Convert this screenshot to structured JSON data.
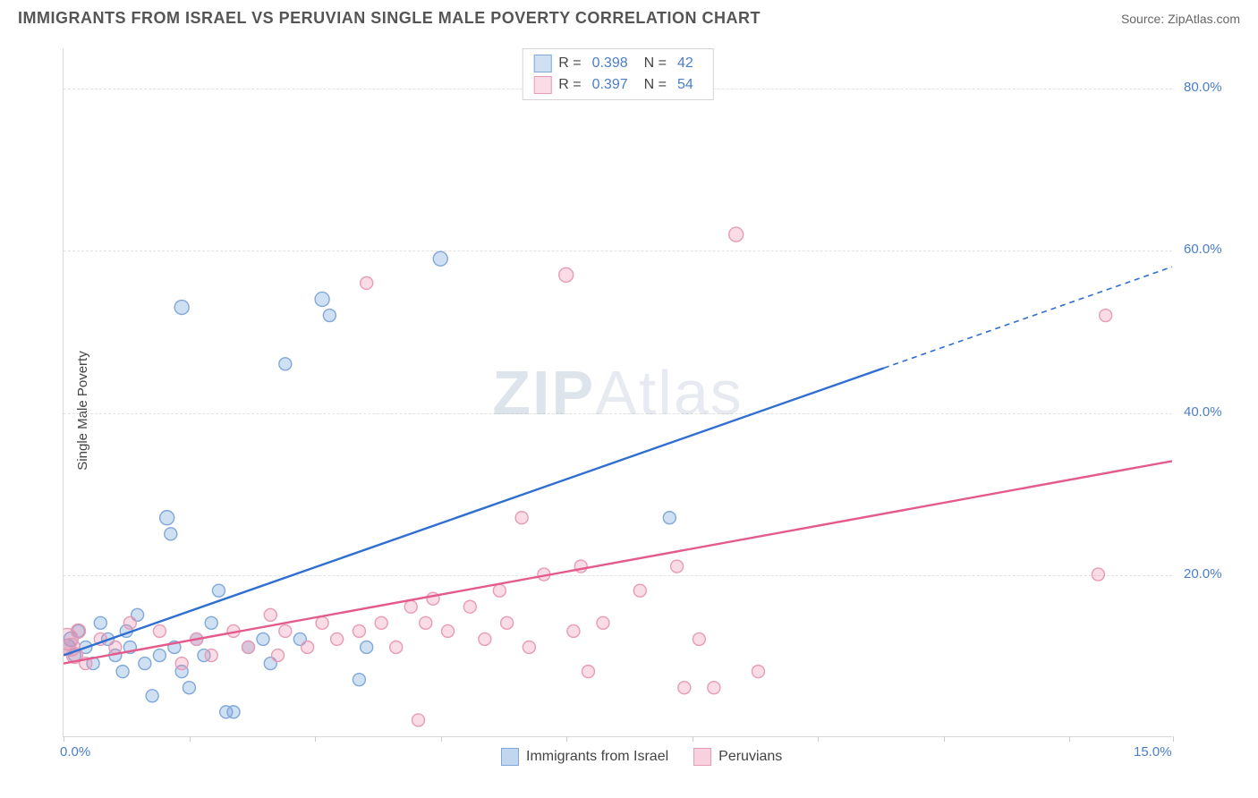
{
  "header": {
    "title": "IMMIGRANTS FROM ISRAEL VS PERUVIAN SINGLE MALE POVERTY CORRELATION CHART",
    "source_prefix": "Source: ",
    "source_name": "ZipAtlas.com"
  },
  "ylabel": "Single Male Poverty",
  "watermark": {
    "zip": "ZIP",
    "rest": "Atlas"
  },
  "chart": {
    "type": "scatter",
    "xlim": [
      0,
      15
    ],
    "ylim": [
      0,
      85
    ],
    "x_ticks": [
      0,
      1.7,
      3.4,
      5.1,
      6.8,
      8.5,
      10.2,
      11.9,
      13.6,
      15
    ],
    "y_grid": [
      20,
      40,
      60,
      80
    ],
    "x_axis_labels": [
      {
        "v": 0,
        "t": "0.0%"
      },
      {
        "v": 15,
        "t": "15.0%"
      }
    ],
    "y_axis_labels": [
      {
        "v": 20,
        "t": "20.0%"
      },
      {
        "v": 40,
        "t": "40.0%"
      },
      {
        "v": 60,
        "t": "60.0%"
      },
      {
        "v": 80,
        "t": "80.0%"
      }
    ],
    "background_color": "#ffffff",
    "grid_color": "#e2e2e2",
    "series": [
      {
        "name": "Immigrants from Israel",
        "color_fill": "rgba(120,165,220,0.35)",
        "color_stroke": "#7fa8d9",
        "line_color": "#2e6fd1",
        "r_label": "R =",
        "r_value": "0.398",
        "n_label": "N =",
        "n_value": "42",
        "trend": {
          "x1": 0.0,
          "y1": 10.0,
          "x2": 11.1,
          "y2": 45.5,
          "x2_dash": 15.0,
          "y2_dash": 58.0
        },
        "points": [
          {
            "x": 0.05,
            "y": 11,
            "r": 9
          },
          {
            "x": 0.1,
            "y": 12,
            "r": 8
          },
          {
            "x": 0.15,
            "y": 10,
            "r": 7
          },
          {
            "x": 0.2,
            "y": 13,
            "r": 7
          },
          {
            "x": 0.3,
            "y": 11,
            "r": 7
          },
          {
            "x": 0.4,
            "y": 9,
            "r": 7
          },
          {
            "x": 0.5,
            "y": 14,
            "r": 7
          },
          {
            "x": 0.6,
            "y": 12,
            "r": 7
          },
          {
            "x": 0.7,
            "y": 10,
            "r": 7
          },
          {
            "x": 0.8,
            "y": 8,
            "r": 7
          },
          {
            "x": 0.85,
            "y": 13,
            "r": 7
          },
          {
            "x": 0.9,
            "y": 11,
            "r": 7
          },
          {
            "x": 1.0,
            "y": 15,
            "r": 7
          },
          {
            "x": 1.1,
            "y": 9,
            "r": 7
          },
          {
            "x": 1.2,
            "y": 5,
            "r": 7
          },
          {
            "x": 1.3,
            "y": 10,
            "r": 7
          },
          {
            "x": 1.4,
            "y": 27,
            "r": 8
          },
          {
            "x": 1.45,
            "y": 25,
            "r": 7
          },
          {
            "x": 1.5,
            "y": 11,
            "r": 7
          },
          {
            "x": 1.6,
            "y": 8,
            "r": 7
          },
          {
            "x": 1.7,
            "y": 6,
            "r": 7
          },
          {
            "x": 1.8,
            "y": 12,
            "r": 7
          },
          {
            "x": 1.9,
            "y": 10,
            "r": 7
          },
          {
            "x": 2.0,
            "y": 14,
            "r": 7
          },
          {
            "x": 2.1,
            "y": 18,
            "r": 7
          },
          {
            "x": 2.2,
            "y": 3,
            "r": 7
          },
          {
            "x": 2.3,
            "y": 3,
            "r": 7
          },
          {
            "x": 2.5,
            "y": 11,
            "r": 7
          },
          {
            "x": 2.7,
            "y": 12,
            "r": 7
          },
          {
            "x": 2.8,
            "y": 9,
            "r": 7
          },
          {
            "x": 3.2,
            "y": 12,
            "r": 7
          },
          {
            "x": 3.0,
            "y": 46,
            "r": 7
          },
          {
            "x": 3.5,
            "y": 54,
            "r": 8
          },
          {
            "x": 3.6,
            "y": 52,
            "r": 7
          },
          {
            "x": 1.6,
            "y": 53,
            "r": 8
          },
          {
            "x": 4.0,
            "y": 7,
            "r": 7
          },
          {
            "x": 4.1,
            "y": 11,
            "r": 7
          },
          {
            "x": 5.1,
            "y": 59,
            "r": 8
          },
          {
            "x": 8.2,
            "y": 27,
            "r": 7
          }
        ]
      },
      {
        "name": "Peruvians",
        "color_fill": "rgba(235,140,170,0.30)",
        "color_stroke": "#e89bb5",
        "line_color": "#e45a8c",
        "r_label": "R =",
        "r_value": "0.397",
        "n_label": "N =",
        "n_value": "54",
        "trend": {
          "x1": 0.0,
          "y1": 9.0,
          "x2": 15.0,
          "y2": 34.0
        },
        "points": [
          {
            "x": 0.05,
            "y": 12,
            "r": 12
          },
          {
            "x": 0.1,
            "y": 11,
            "r": 10
          },
          {
            "x": 0.15,
            "y": 10,
            "r": 9
          },
          {
            "x": 0.2,
            "y": 13,
            "r": 8
          },
          {
            "x": 0.3,
            "y": 9,
            "r": 7
          },
          {
            "x": 0.5,
            "y": 12,
            "r": 7
          },
          {
            "x": 0.7,
            "y": 11,
            "r": 7
          },
          {
            "x": 0.9,
            "y": 14,
            "r": 7
          },
          {
            "x": 1.3,
            "y": 13,
            "r": 7
          },
          {
            "x": 1.6,
            "y": 9,
            "r": 7
          },
          {
            "x": 1.8,
            "y": 12,
            "r": 7
          },
          {
            "x": 2.0,
            "y": 10,
            "r": 7
          },
          {
            "x": 2.3,
            "y": 13,
            "r": 7
          },
          {
            "x": 2.5,
            "y": 11,
            "r": 7
          },
          {
            "x": 2.8,
            "y": 15,
            "r": 7
          },
          {
            "x": 2.9,
            "y": 10,
            "r": 7
          },
          {
            "x": 3.0,
            "y": 13,
            "r": 7
          },
          {
            "x": 3.3,
            "y": 11,
            "r": 7
          },
          {
            "x": 3.5,
            "y": 14,
            "r": 7
          },
          {
            "x": 3.7,
            "y": 12,
            "r": 7
          },
          {
            "x": 4.0,
            "y": 13,
            "r": 7
          },
          {
            "x": 4.1,
            "y": 56,
            "r": 7
          },
          {
            "x": 4.3,
            "y": 14,
            "r": 7
          },
          {
            "x": 4.5,
            "y": 11,
            "r": 7
          },
          {
            "x": 4.7,
            "y": 16,
            "r": 7
          },
          {
            "x": 4.8,
            "y": 2,
            "r": 7
          },
          {
            "x": 4.9,
            "y": 14,
            "r": 7
          },
          {
            "x": 5.0,
            "y": 17,
            "r": 7
          },
          {
            "x": 5.2,
            "y": 13,
            "r": 7
          },
          {
            "x": 5.5,
            "y": 16,
            "r": 7
          },
          {
            "x": 5.7,
            "y": 12,
            "r": 7
          },
          {
            "x": 5.9,
            "y": 18,
            "r": 7
          },
          {
            "x": 6.0,
            "y": 14,
            "r": 7
          },
          {
            "x": 6.2,
            "y": 27,
            "r": 7
          },
          {
            "x": 6.3,
            "y": 11,
            "r": 7
          },
          {
            "x": 6.5,
            "y": 20,
            "r": 7
          },
          {
            "x": 6.8,
            "y": 57,
            "r": 8
          },
          {
            "x": 6.9,
            "y": 13,
            "r": 7
          },
          {
            "x": 7.0,
            "y": 21,
            "r": 7
          },
          {
            "x": 7.1,
            "y": 8,
            "r": 7
          },
          {
            "x": 7.3,
            "y": 14,
            "r": 7
          },
          {
            "x": 7.8,
            "y": 18,
            "r": 7
          },
          {
            "x": 8.3,
            "y": 21,
            "r": 7
          },
          {
            "x": 8.4,
            "y": 6,
            "r": 7
          },
          {
            "x": 8.6,
            "y": 12,
            "r": 7
          },
          {
            "x": 8.8,
            "y": 6,
            "r": 7
          },
          {
            "x": 9.1,
            "y": 62,
            "r": 8
          },
          {
            "x": 9.4,
            "y": 8,
            "r": 7
          },
          {
            "x": 14.1,
            "y": 52,
            "r": 7
          },
          {
            "x": 14.0,
            "y": 20,
            "r": 7
          }
        ]
      }
    ]
  },
  "legend_bottom": [
    {
      "label": "Immigrants from Israel",
      "fill": "rgba(120,165,220,0.45)",
      "stroke": "#7fa8d9"
    },
    {
      "label": "Peruvians",
      "fill": "rgba(235,140,170,0.40)",
      "stroke": "#e89bb5"
    }
  ]
}
